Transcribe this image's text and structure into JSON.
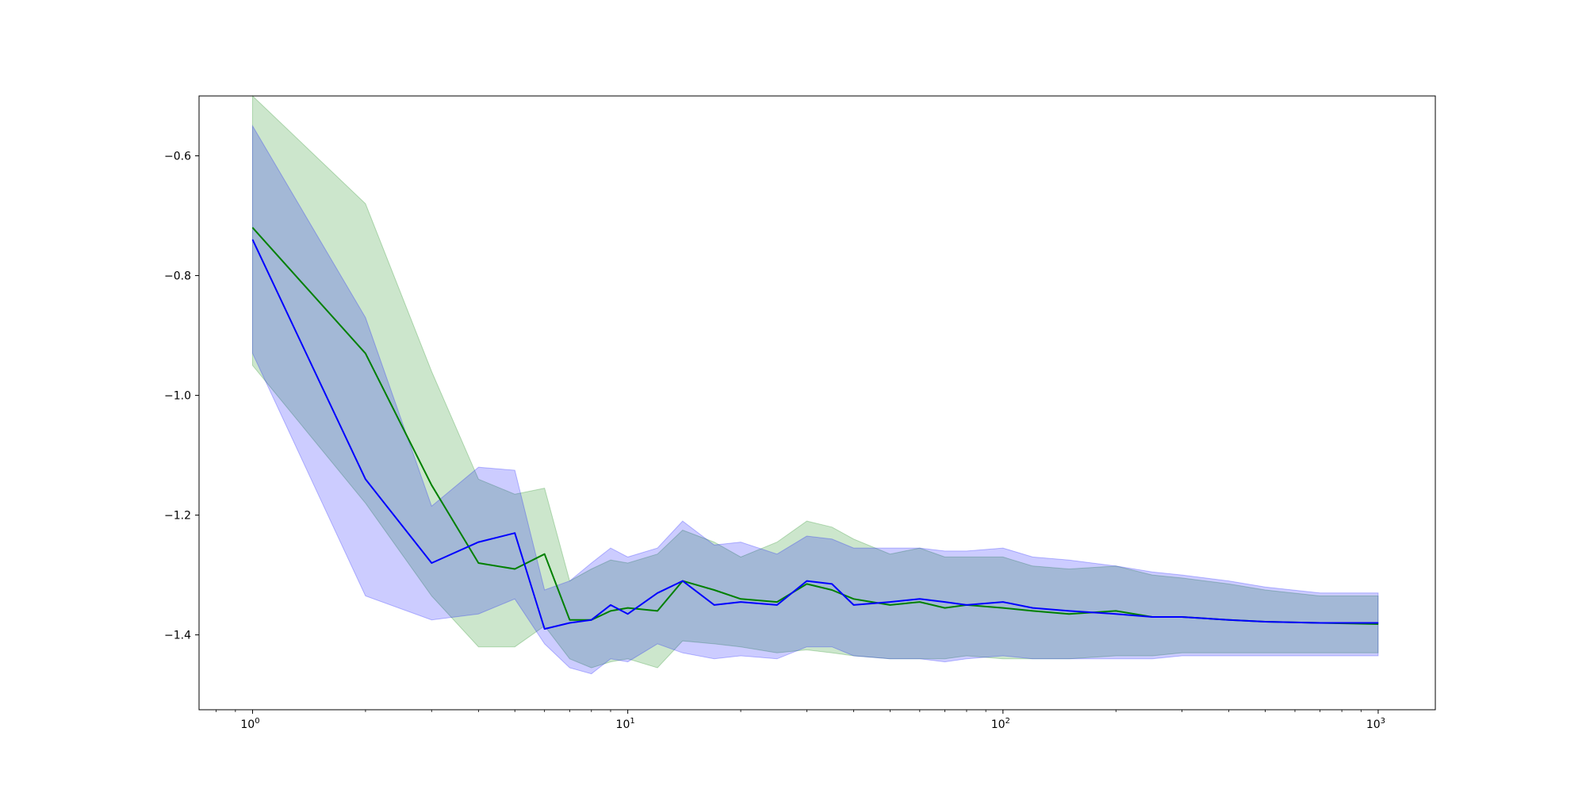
{
  "chart_data": {
    "type": "line",
    "title": "",
    "xlabel": "",
    "ylabel": "",
    "xscale": "log",
    "xlim": [
      0.72,
      1420
    ],
    "ylim": [
      -1.525,
      -0.5
    ],
    "grid": false,
    "legend": "none",
    "x_ticks": [
      {
        "base": "10",
        "exp": "0",
        "value": 1
      },
      {
        "base": "10",
        "exp": "1",
        "value": 10
      },
      {
        "base": "10",
        "exp": "2",
        "value": 100
      },
      {
        "base": "10",
        "exp": "3",
        "value": 1000
      }
    ],
    "y_ticks": [
      {
        "label": "−0.6",
        "value": -0.6
      },
      {
        "label": "−0.8",
        "value": -0.8
      },
      {
        "label": "−1.0",
        "value": -1.0
      },
      {
        "label": "−1.2",
        "value": -1.2
      },
      {
        "label": "−1.4",
        "value": -1.4
      }
    ],
    "series": [
      {
        "color": "#008000",
        "band_color": "#008000",
        "band_opacity": 0.2,
        "x": [
          1,
          2,
          3,
          4,
          5,
          6,
          7,
          8,
          9,
          10,
          12,
          14,
          17,
          20,
          25,
          30,
          35,
          40,
          50,
          60,
          70,
          80,
          100,
          120,
          150,
          200,
          250,
          300,
          400,
          500,
          700,
          1000
        ],
        "mean": [
          -0.72,
          -0.93,
          -1.15,
          -1.28,
          -1.29,
          -1.265,
          -1.375,
          -1.375,
          -1.36,
          -1.355,
          -1.36,
          -1.31,
          -1.325,
          -1.34,
          -1.345,
          -1.315,
          -1.325,
          -1.34,
          -1.35,
          -1.345,
          -1.355,
          -1.35,
          -1.355,
          -1.36,
          -1.365,
          -1.36,
          -1.37,
          -1.37,
          -1.375,
          -1.378,
          -1.38,
          -1.382
        ],
        "upper": [
          -0.5,
          -0.68,
          -0.96,
          -1.14,
          -1.165,
          -1.155,
          -1.31,
          -1.29,
          -1.275,
          -1.28,
          -1.265,
          -1.225,
          -1.245,
          -1.27,
          -1.245,
          -1.21,
          -1.22,
          -1.24,
          -1.265,
          -1.255,
          -1.27,
          -1.27,
          -1.27,
          -1.285,
          -1.29,
          -1.285,
          -1.3,
          -1.305,
          -1.315,
          -1.325,
          -1.335,
          -1.335
        ],
        "lower": [
          -0.95,
          -1.18,
          -1.335,
          -1.42,
          -1.42,
          -1.385,
          -1.44,
          -1.455,
          -1.445,
          -1.44,
          -1.455,
          -1.41,
          -1.415,
          -1.42,
          -1.43,
          -1.425,
          -1.43,
          -1.435,
          -1.44,
          -1.44,
          -1.44,
          -1.435,
          -1.44,
          -1.44,
          -1.44,
          -1.435,
          -1.435,
          -1.43,
          -1.43,
          -1.43,
          -1.43,
          -1.43
        ]
      },
      {
        "color": "#0000ff",
        "band_color": "#0000ff",
        "band_opacity": 0.2,
        "x": [
          1,
          2,
          3,
          4,
          5,
          6,
          7,
          8,
          9,
          10,
          12,
          14,
          17,
          20,
          25,
          30,
          35,
          40,
          50,
          60,
          70,
          80,
          100,
          120,
          150,
          200,
          250,
          300,
          400,
          500,
          700,
          1000
        ],
        "mean": [
          -0.74,
          -1.14,
          -1.28,
          -1.245,
          -1.23,
          -1.39,
          -1.38,
          -1.375,
          -1.35,
          -1.365,
          -1.33,
          -1.31,
          -1.35,
          -1.345,
          -1.35,
          -1.31,
          -1.315,
          -1.35,
          -1.345,
          -1.34,
          -1.345,
          -1.35,
          -1.345,
          -1.355,
          -1.36,
          -1.365,
          -1.37,
          -1.37,
          -1.375,
          -1.378,
          -1.38,
          -1.38
        ],
        "upper": [
          -0.55,
          -0.87,
          -1.185,
          -1.12,
          -1.125,
          -1.325,
          -1.31,
          -1.28,
          -1.255,
          -1.27,
          -1.255,
          -1.21,
          -1.25,
          -1.245,
          -1.265,
          -1.235,
          -1.24,
          -1.255,
          -1.255,
          -1.255,
          -1.26,
          -1.26,
          -1.255,
          -1.27,
          -1.275,
          -1.285,
          -1.295,
          -1.3,
          -1.31,
          -1.32,
          -1.33,
          -1.33
        ],
        "lower": [
          -0.93,
          -1.335,
          -1.375,
          -1.365,
          -1.34,
          -1.415,
          -1.455,
          -1.465,
          -1.44,
          -1.445,
          -1.415,
          -1.43,
          -1.44,
          -1.435,
          -1.44,
          -1.42,
          -1.42,
          -1.435,
          -1.44,
          -1.44,
          -1.445,
          -1.44,
          -1.435,
          -1.44,
          -1.44,
          -1.44,
          -1.44,
          -1.435,
          -1.435,
          -1.435,
          -1.435,
          -1.435
        ]
      }
    ]
  }
}
